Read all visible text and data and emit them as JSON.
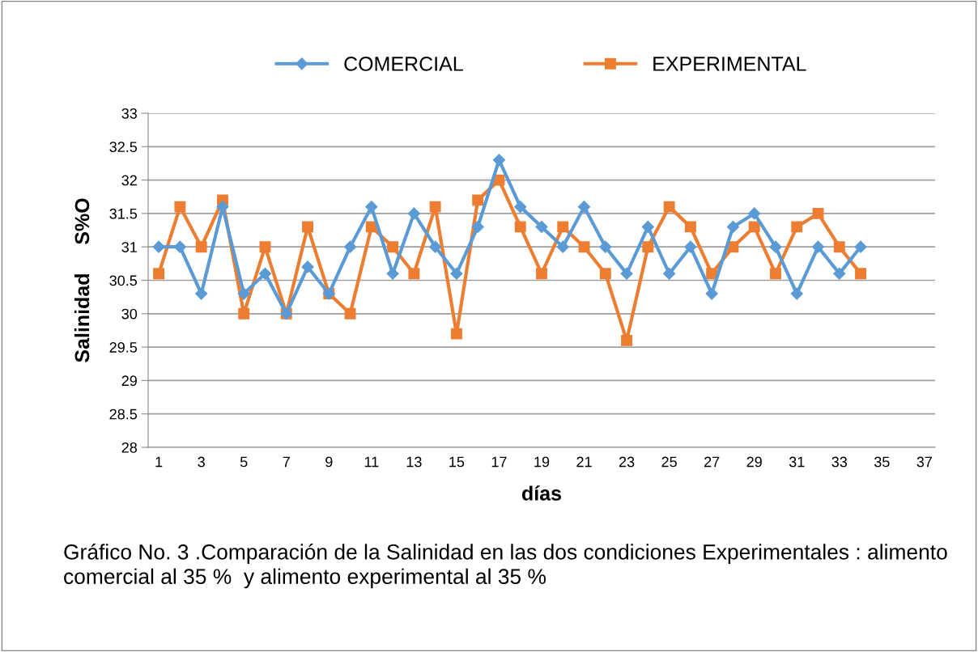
{
  "chart_data": {
    "type": "line",
    "categories": [
      "1",
      null,
      "3",
      null,
      "5",
      null,
      "7",
      null,
      "9",
      null,
      "11",
      null,
      "13",
      null,
      "15",
      null,
      "17",
      null,
      "19",
      null,
      "21",
      null,
      "23",
      null,
      "25",
      null,
      "27",
      null,
      "29",
      null,
      "31",
      null,
      "33",
      null,
      "35",
      null,
      "37"
    ],
    "series": [
      {
        "name": "COMERCIAL",
        "color": "#5b9bd5",
        "marker": "diamond",
        "values": [
          31,
          31,
          30.3,
          31.6,
          30.3,
          30.6,
          30,
          30.7,
          30.3,
          31,
          31.6,
          30.6,
          31.5,
          31,
          30.6,
          31.3,
          32.3,
          31.6,
          31.3,
          31,
          31.6,
          31,
          30.6,
          31.3,
          30.6,
          31,
          30.3,
          31.3,
          31.5,
          31,
          30.3,
          31,
          30.6,
          31,
          null,
          null,
          null
        ]
      },
      {
        "name": "EXPERIMENTAL",
        "color": "#ed7d31",
        "marker": "square",
        "values": [
          30.6,
          31.6,
          31,
          31.7,
          30,
          31,
          30,
          31.3,
          30.3,
          30,
          31.3,
          31,
          30.6,
          31.6,
          29.7,
          31.7,
          32,
          31.3,
          30.6,
          31.3,
          31,
          30.6,
          29.6,
          31,
          31.6,
          31.3,
          30.6,
          31,
          31.3,
          30.6,
          31.3,
          31.5,
          31,
          30.6,
          null,
          null,
          null
        ]
      }
    ],
    "xlabel": "días",
    "ylabel": "Salinidad     S%O",
    "ylim": [
      28,
      33
    ],
    "yticks": [
      28,
      28.5,
      29,
      29.5,
      30,
      30.5,
      31,
      31.5,
      32,
      32.5,
      33
    ],
    "grid": "y",
    "legend": "top",
    "annotations": [
      "Gráfico No. 3 .Comparación de la Salinidad en las dos condiciones Experimentales : alimento  comercial al 35 %  y alimento experimental al 35 %"
    ]
  }
}
